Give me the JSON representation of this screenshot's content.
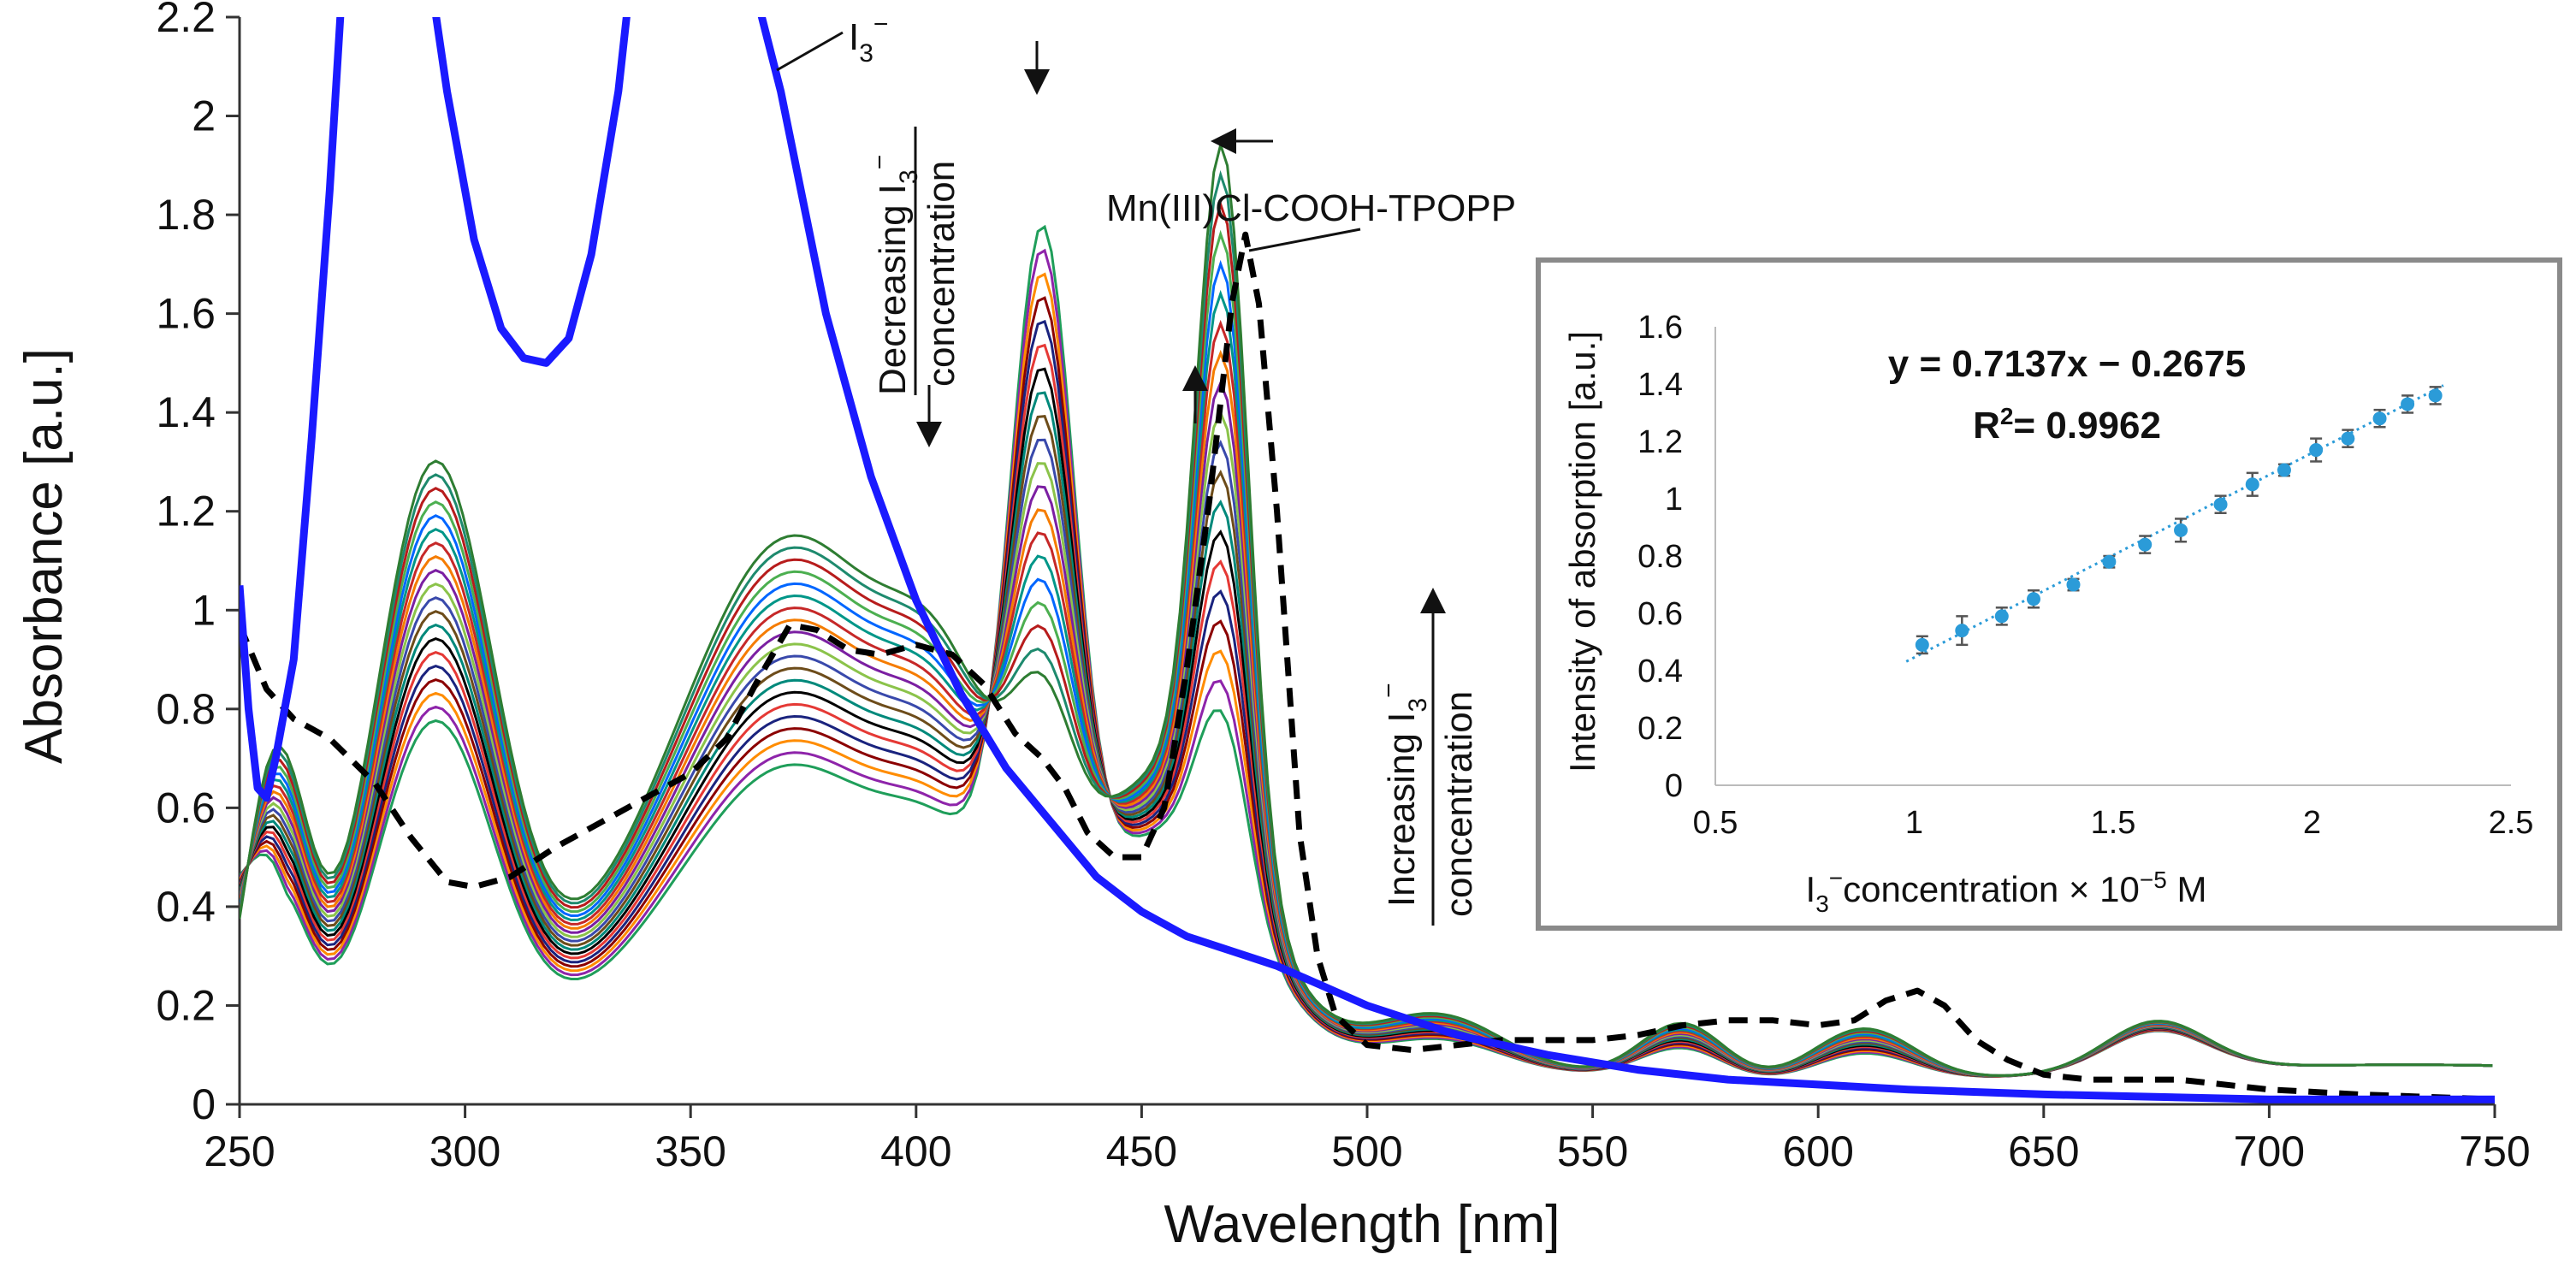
{
  "chart_data": {
    "type": "line",
    "main": {
      "xlabel": "Wavelength [nm]",
      "ylabel": "Absorbance [a.u.]",
      "xlim": [
        250,
        750
      ],
      "ylim": [
        0,
        2.2
      ],
      "x_ticks": [
        "250",
        "300",
        "350",
        "400",
        "450",
        "500",
        "550",
        "600",
        "650",
        "700",
        "750"
      ],
      "y_ticks": [
        "0",
        "0.2",
        "0.4",
        "0.6",
        "0.8",
        "1",
        "1.2",
        "1.4",
        "1.6",
        "1.8",
        "2",
        "2.2"
      ],
      "i3_label": "I",
      "i3_sub": "3",
      "i3_sup": "−",
      "porphyrin_label": "Mn(III)Cl-COOH-TPOPP",
      "decreasing_label": "Decreasing I",
      "decreasing_label_2": "concentration",
      "increasing_label": "Increasing I",
      "increasing_label_2": "concentration",
      "series_colors": [
        "#1f9e5a",
        "#8e24aa",
        "#ff8c00",
        "#8b0000",
        "#1a237e",
        "#e53935",
        "#000000",
        "#00897b",
        "#6d4c1a",
        "#3949ab",
        "#8bc34a",
        "#7b1fa2",
        "#f57c00",
        "#c62828",
        "#009688",
        "#0066ff",
        "#4caf50",
        "#b71c1c",
        "#1e8a6e",
        "#2e7d32"
      ],
      "i3_color": "#1a1aff",
      "porphyrin_color": "#000000",
      "porphyrin_points": [
        [
          250,
          0.97
        ],
        [
          256,
          0.84
        ],
        [
          262,
          0.78
        ],
        [
          270,
          0.74
        ],
        [
          280,
          0.65
        ],
        [
          288,
          0.54
        ],
        [
          296,
          0.45
        ],
        [
          302,
          0.44
        ],
        [
          310,
          0.46
        ],
        [
          320,
          0.52
        ],
        [
          330,
          0.57
        ],
        [
          340,
          0.62
        ],
        [
          350,
          0.67
        ],
        [
          358,
          0.74
        ],
        [
          365,
          0.86
        ],
        [
          372,
          0.97
        ],
        [
          378,
          0.96
        ],
        [
          385,
          0.92
        ],
        [
          392,
          0.91
        ],
        [
          400,
          0.93
        ],
        [
          408,
          0.91
        ],
        [
          415,
          0.85
        ],
        [
          422,
          0.75
        ],
        [
          428,
          0.7
        ],
        [
          433,
          0.64
        ],
        [
          438,
          0.55
        ],
        [
          444,
          0.5
        ],
        [
          450,
          0.5
        ],
        [
          455,
          0.6
        ],
        [
          460,
          0.88
        ],
        [
          465,
          1.22
        ],
        [
          470,
          1.62
        ],
        [
          473,
          1.76
        ],
        [
          476,
          1.62
        ],
        [
          480,
          1.2
        ],
        [
          485,
          0.55
        ],
        [
          489,
          0.3
        ],
        [
          493,
          0.18
        ],
        [
          500,
          0.12
        ],
        [
          510,
          0.11
        ],
        [
          520,
          0.12
        ],
        [
          530,
          0.13
        ],
        [
          540,
          0.13
        ],
        [
          550,
          0.13
        ],
        [
          560,
          0.14
        ],
        [
          570,
          0.16
        ],
        [
          580,
          0.17
        ],
        [
          590,
          0.17
        ],
        [
          600,
          0.16
        ],
        [
          608,
          0.17
        ],
        [
          615,
          0.21
        ],
        [
          622,
          0.23
        ],
        [
          628,
          0.2
        ],
        [
          635,
          0.13
        ],
        [
          642,
          0.09
        ],
        [
          650,
          0.06
        ],
        [
          660,
          0.05
        ],
        [
          680,
          0.05
        ],
        [
          700,
          0.03
        ],
        [
          720,
          0.02
        ],
        [
          750,
          0.01
        ]
      ],
      "i3_points": [
        [
          250,
          1.05
        ],
        [
          252,
          0.8
        ],
        [
          254,
          0.64
        ],
        [
          256,
          0.62
        ],
        [
          258,
          0.7
        ],
        [
          262,
          0.9
        ],
        [
          266,
          1.35
        ],
        [
          270,
          1.85
        ],
        [
          273,
          2.3
        ],
        [
          292,
          2.3
        ],
        [
          296,
          2.05
        ],
        [
          302,
          1.75
        ],
        [
          308,
          1.57
        ],
        [
          313,
          1.51
        ],
        [
          318,
          1.5
        ],
        [
          323,
          1.55
        ],
        [
          328,
          1.72
        ],
        [
          334,
          2.05
        ],
        [
          337,
          2.3
        ],
        [
          363,
          2.3
        ],
        [
          370,
          2.05
        ],
        [
          380,
          1.6
        ],
        [
          390,
          1.27
        ],
        [
          400,
          1.02
        ],
        [
          410,
          0.83
        ],
        [
          420,
          0.68
        ],
        [
          430,
          0.57
        ],
        [
          440,
          0.46
        ],
        [
          450,
          0.39
        ],
        [
          460,
          0.34
        ],
        [
          470,
          0.31
        ],
        [
          480,
          0.28
        ],
        [
          490,
          0.24
        ],
        [
          500,
          0.2
        ],
        [
          520,
          0.14
        ],
        [
          540,
          0.1
        ],
        [
          560,
          0.07
        ],
        [
          580,
          0.05
        ],
        [
          600,
          0.04
        ],
        [
          620,
          0.03
        ],
        [
          650,
          0.02
        ],
        [
          700,
          0.01
        ],
        [
          750,
          0.01
        ]
      ]
    },
    "inset": {
      "type": "scatter",
      "xlabel": "I",
      "xlabel_sub": "3",
      "xlabel_rest": "concentration × 10",
      "xlabel_exp": "−5",
      "xlabel_unit": "M",
      "ylabel": "Intensity of absorption [a.u.]",
      "xlim": [
        0.5,
        2.5
      ],
      "ylim": [
        0,
        1.6
      ],
      "x_ticks": [
        "0.5",
        "1",
        "1.5",
        "2",
        "2.5"
      ],
      "y_ticks": [
        "0",
        "0.2",
        "0.4",
        "0.6",
        "0.8",
        "1",
        "1.2",
        "1.4",
        "1.6"
      ],
      "equation": "y = 0.7137x − 0.2675",
      "r2_label": "R",
      "r2_exp": "2",
      "r2_value": "= 0.9962",
      "point_color": "#2b9bd8",
      "x": [
        1.02,
        1.12,
        1.22,
        1.3,
        1.4,
        1.49,
        1.58,
        1.67,
        1.77,
        1.85,
        1.93,
        2.01,
        2.09,
        2.17,
        2.24,
        2.31
      ],
      "y": [
        0.49,
        0.54,
        0.59,
        0.65,
        0.7,
        0.78,
        0.84,
        0.89,
        0.98,
        1.05,
        1.1,
        1.17,
        1.21,
        1.28,
        1.33,
        1.36
      ],
      "err": [
        0.03,
        0.05,
        0.03,
        0.03,
        0.02,
        0.02,
        0.03,
        0.04,
        0.03,
        0.04,
        0.02,
        0.04,
        0.03,
        0.03,
        0.03,
        0.03
      ],
      "fit": {
        "slope": 0.7137,
        "intercept": -0.2675
      }
    }
  }
}
